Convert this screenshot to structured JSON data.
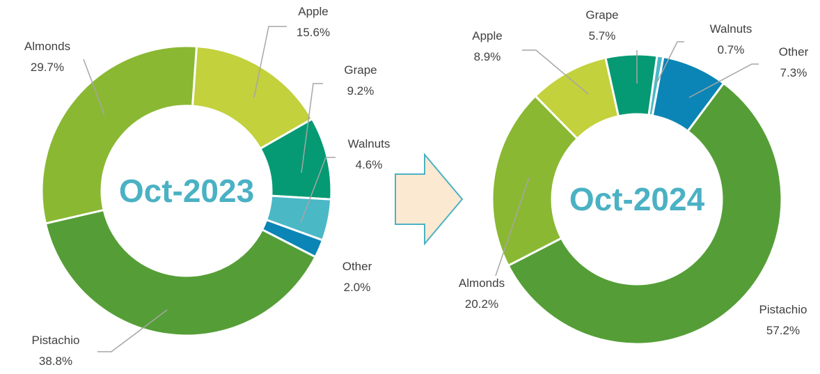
{
  "chart_data": [
    {
      "type": "donut",
      "center_label": "Oct-2023",
      "categories": [
        "Apple",
        "Grape",
        "Walnuts",
        "Other",
        "Pistachio",
        "Almonds"
      ],
      "values": [
        15.6,
        9.2,
        4.6,
        2.0,
        38.8,
        29.7
      ],
      "value_labels": [
        "15.6%",
        "9.2%",
        "4.6%",
        "2.0%",
        "38.8%",
        "29.7%"
      ],
      "colors": [
        "#c2d13c",
        "#059a73",
        "#4bb8c6",
        "#0b85b5",
        "#559e37",
        "#8ab833"
      ]
    },
    {
      "type": "donut",
      "center_label": "Oct-2024",
      "categories": [
        "Walnuts",
        "Other",
        "Pistachio",
        "Almonds",
        "Apple",
        "Grape"
      ],
      "values": [
        0.7,
        7.3,
        57.2,
        20.2,
        8.9,
        5.7
      ],
      "value_labels": [
        "0.7%",
        "7.3%",
        "57.2%",
        "20.2%",
        "8.9%",
        "5.7%"
      ],
      "colors": [
        "#4bb8c6",
        "#0b85b5",
        "#559e37",
        "#8ab833",
        "#c2d13c",
        "#059a73"
      ]
    }
  ]
}
